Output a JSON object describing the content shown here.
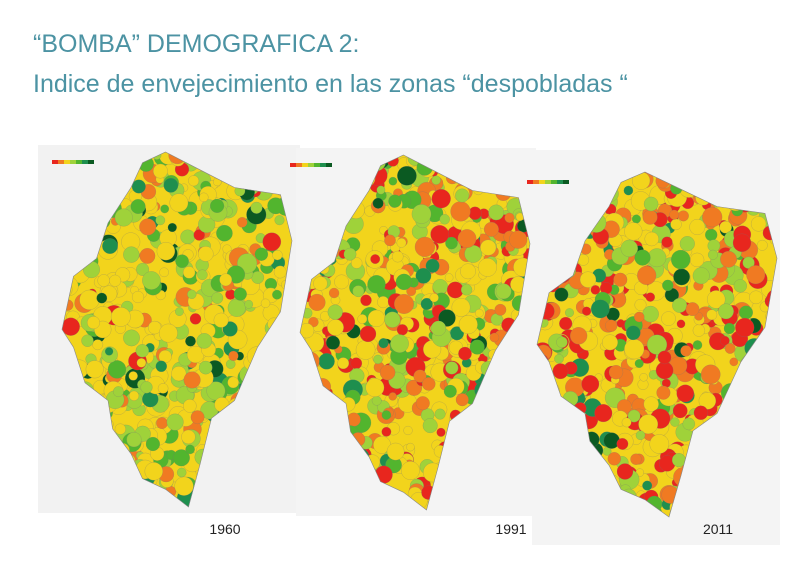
{
  "header": {
    "title_line1": "“BOMBA” DEMOGRAFICA 2:",
    "title_line2": "Indice de envejecimiento en las zonas “despobladas “"
  },
  "maps": [
    {
      "label": "1960"
    },
    {
      "label": "1991"
    },
    {
      "label": "2011"
    }
  ]
}
